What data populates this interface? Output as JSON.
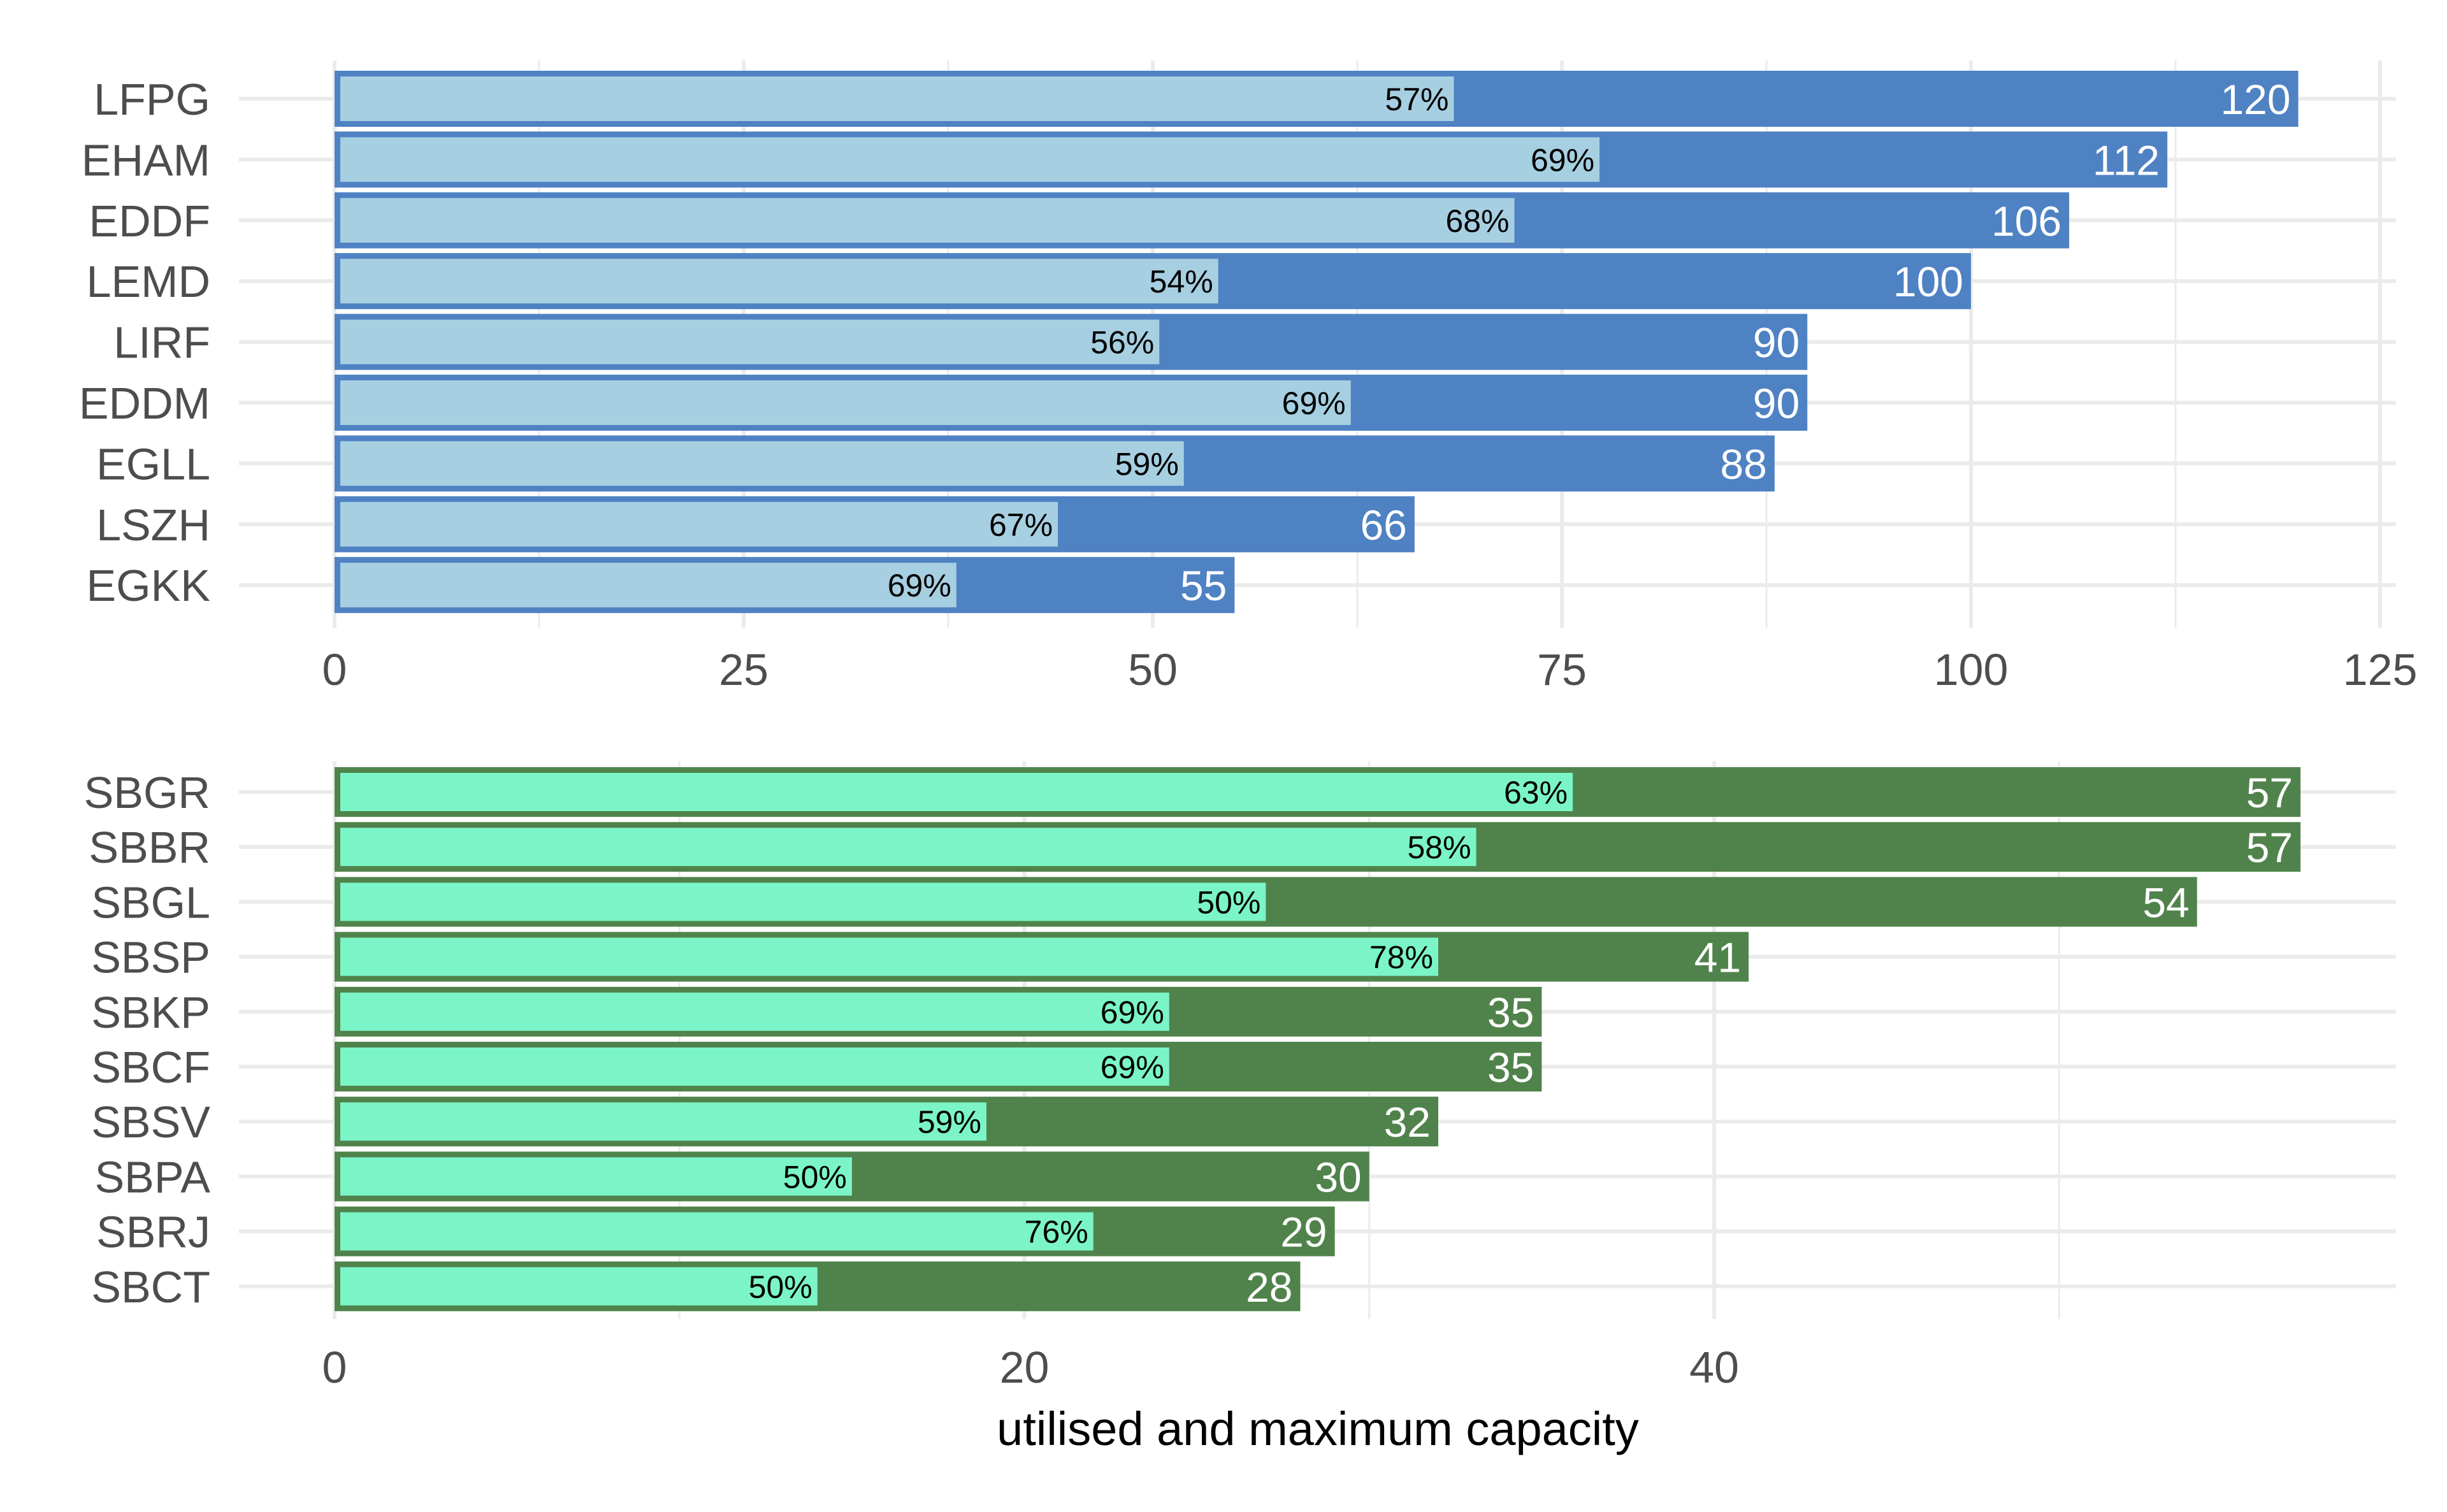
{
  "chart_data": [
    {
      "type": "bar",
      "orientation": "horizontal",
      "panel": "top",
      "categories": [
        "LFPG",
        "EHAM",
        "EDDF",
        "LEMD",
        "LIRF",
        "EDDM",
        "EGLL",
        "LSZH",
        "EGKK"
      ],
      "series": [
        {
          "name": "maximum capacity",
          "values": [
            120,
            112,
            106,
            100,
            90,
            90,
            88,
            66,
            55
          ],
          "color": "#4F82C3"
        },
        {
          "name": "utilised capacity",
          "values": [
            68.4,
            77.3,
            72.1,
            54,
            50.4,
            62.1,
            51.9,
            44.2,
            38.0
          ],
          "color": "#A6CFE1"
        }
      ],
      "value_labels": [
        "120",
        "112",
        "106",
        "100",
        "90",
        "90",
        "88",
        "66",
        "55"
      ],
      "percent_labels": [
        "57%",
        "69%",
        "68%",
        "54%",
        "56%",
        "69%",
        "59%",
        "67%",
        "69%"
      ],
      "xlim": [
        0,
        125
      ],
      "xticks": [
        0,
        25,
        50,
        75,
        100,
        125
      ],
      "xtick_labels": [
        "0",
        "25",
        "50",
        "75",
        "100",
        "125"
      ],
      "grid": true,
      "xlabel": "",
      "ylabel": ""
    },
    {
      "type": "bar",
      "orientation": "horizontal",
      "panel": "bottom",
      "categories": [
        "SBGR",
        "SBBR",
        "SBGL",
        "SBSP",
        "SBKP",
        "SBCF",
        "SBSV",
        "SBPA",
        "SBRJ",
        "SBCT"
      ],
      "series": [
        {
          "name": "maximum capacity",
          "values": [
            57,
            57,
            54,
            41,
            35,
            35,
            32,
            30,
            29,
            28
          ],
          "color": "#50834B"
        },
        {
          "name": "utilised capacity",
          "values": [
            35.9,
            33.1,
            27.0,
            32.0,
            24.2,
            24.2,
            18.9,
            15.0,
            22.0,
            14.0
          ],
          "color": "#7BF5C8"
        }
      ],
      "value_labels": [
        "57",
        "57",
        "54",
        "41",
        "35",
        "35",
        "32",
        "30",
        "29",
        "28"
      ],
      "percent_labels": [
        "63%",
        "58%",
        "50%",
        "78%",
        "69%",
        "69%",
        "59%",
        "50%",
        "76%",
        "50%"
      ],
      "xlim": [
        0,
        60
      ],
      "xticks": [
        0,
        20,
        40
      ],
      "xtick_labels": [
        "0",
        "20",
        "40"
      ],
      "grid": true,
      "xlabel": "utilised and maximum capacity",
      "ylabel": ""
    }
  ]
}
